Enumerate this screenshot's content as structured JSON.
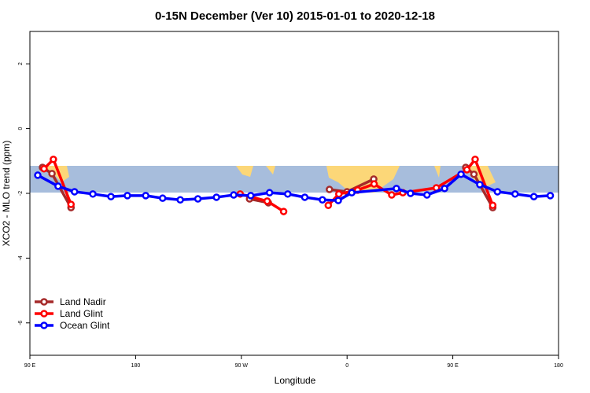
{
  "chart_data": {
    "type": "line",
    "title": "0-15N December (Ver 10)   2015-01-01 to 2020-12-18",
    "xlabel": "Longitude",
    "ylabel": "XCO2 - MLO trend (ppm)",
    "xlim": [
      90,
      540
    ],
    "xticks": [
      {
        "value": 90,
        "label": "90 E"
      },
      180,
      {
        "value": 270,
        "label": "90 W"
      },
      {
        "value": 360,
        "label": "0"
      },
      {
        "value": 450,
        "label": "90 E"
      },
      {
        "value": 540,
        "label": "180"
      }
    ],
    "ylim": [
      -7,
      3
    ],
    "yticks": [
      2,
      0,
      -2,
      -4,
      -6
    ],
    "legend": "bottom-left",
    "series": [
      {
        "name": "Land Nadir",
        "color": "#a52a2a",
        "x": [
          100.7,
          108.8,
          125,
          null,
          277,
          293,
          null,
          345,
          360,
          382.7,
          null,
          461,
          468,
          484
        ],
        "values": [
          -1.2,
          -1.39,
          -2.44,
          null,
          -2.17,
          -2.29,
          null,
          -1.88,
          -1.95,
          -1.56,
          null,
          -1.2,
          -1.41,
          -2.44
        ]
      },
      {
        "name": "Land Glint",
        "color": "#ff0000",
        "x": [
          102,
          110,
          125,
          null,
          269,
          292,
          306,
          null,
          344,
          353,
          369,
          383,
          398,
          407.5,
          436,
          462,
          469,
          484
        ],
        "values": [
          -1.24,
          -0.95,
          -2.34,
          null,
          -2.02,
          -2.24,
          -2.56,
          null,
          -2.37,
          -2.02,
          -1.9,
          -1.71,
          -2.05,
          -1.98,
          -1.83,
          -1.27,
          -0.95,
          -2.37
        ]
      },
      {
        "name": "Ocean Glint",
        "color": "#0000ff",
        "x": [
          96.7,
          114,
          128,
          143.6,
          159,
          173,
          188.6,
          203,
          218,
          233,
          248.8,
          263.5,
          278,
          294,
          309.5,
          324,
          339,
          352.5,
          364,
          402,
          414,
          428,
          443,
          457,
          473,
          488,
          503,
          519,
          533
        ],
        "values": [
          -1.44,
          -1.78,
          -1.95,
          -2.02,
          -2.1,
          -2.07,
          -2.07,
          -2.15,
          -2.2,
          -2.17,
          -2.12,
          -2.05,
          -2.07,
          -1.98,
          -2.02,
          -2.12,
          -2.2,
          -2.22,
          -1.98,
          -1.85,
          -2,
          -2.05,
          -1.85,
          -1.41,
          -1.73,
          -1.95,
          -2.02,
          -2.1,
          -2.07
        ]
      }
    ]
  }
}
